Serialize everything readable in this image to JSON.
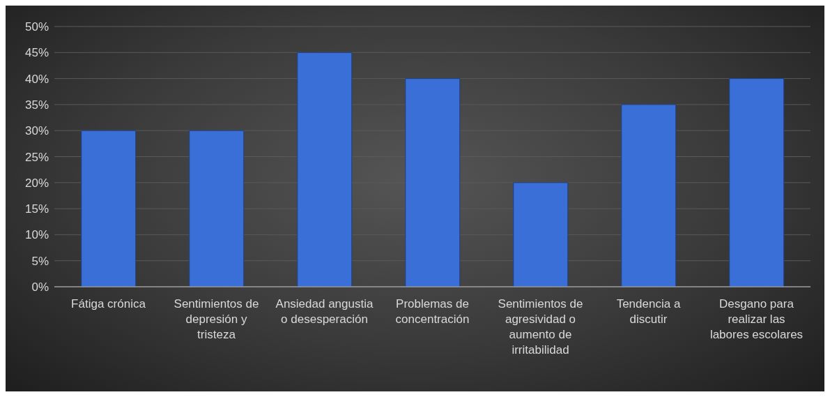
{
  "chart_data": {
    "type": "bar",
    "categories": [
      "Fátiga crónica",
      "Sentimientos de depresión y tristeza",
      "Ansiedad angustia o desesperación",
      "Problemas de concentración",
      "Sentimientos de agresividad o aumento de irritabilidad",
      "Tendencia a discutir",
      "Desgano para realizar las labores escolares"
    ],
    "values": [
      30,
      30,
      45,
      40,
      20,
      35,
      40
    ],
    "color": "#3a6fd8",
    "ylim": [
      0,
      50
    ],
    "yticks": [
      {
        "value": 0,
        "label": "0%"
      },
      {
        "value": 5,
        "label": "5%"
      },
      {
        "value": 10,
        "label": "10%"
      },
      {
        "value": 15,
        "label": "15%"
      },
      {
        "value": 20,
        "label": "20%"
      },
      {
        "value": 25,
        "label": "25%"
      },
      {
        "value": 30,
        "label": "30%"
      },
      {
        "value": 35,
        "label": "35%"
      },
      {
        "value": 40,
        "label": "40%"
      },
      {
        "value": 45,
        "label": "45%"
      },
      {
        "value": 50,
        "label": "50%"
      }
    ],
    "grid": "y"
  }
}
